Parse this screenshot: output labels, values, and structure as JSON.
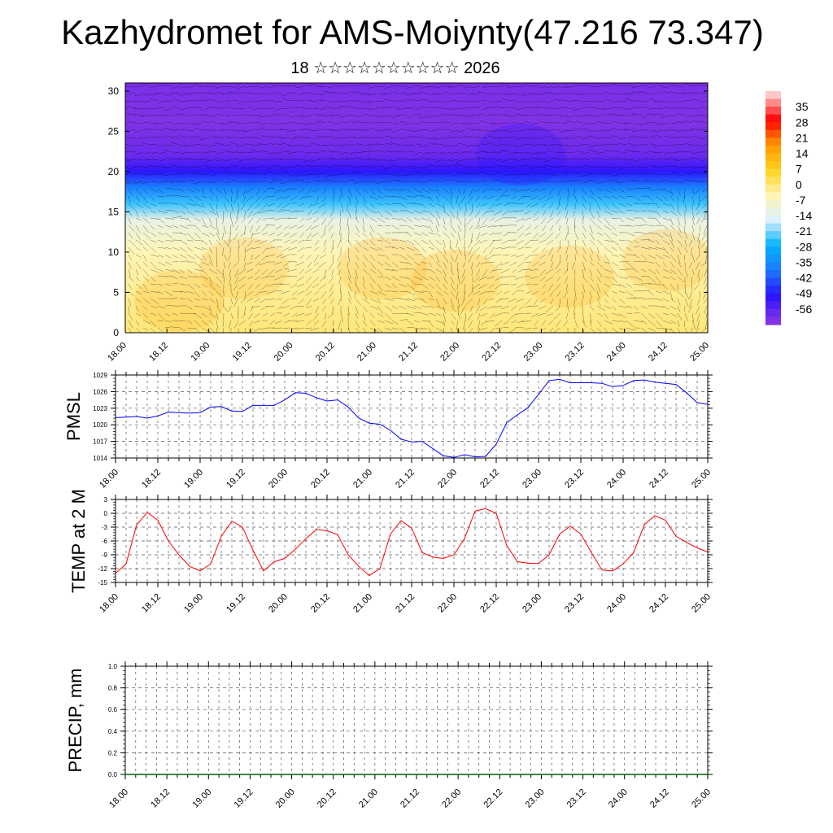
{
  "header": {
    "title": "Kazhydromet for AMS-Moiynty(47.216 73.347)",
    "subtitle": "18 ☆☆☆☆☆☆☆☆☆☆ 2026"
  },
  "colors": {
    "pmsl_line": "#0000ff",
    "temp_line": "#ff0000",
    "precip_line": "#006400",
    "colormap": [
      "#ffc8c8",
      "#ff0000",
      "#ff9900",
      "#ffd21e",
      "#fff5b4",
      "#dcf0ff",
      "#00b4ff",
      "#1e78ff",
      "#2814ff",
      "#8232e6"
    ]
  },
  "chart_data": [
    {
      "type": "heatmap",
      "name": "vertical-profile",
      "title": "",
      "xlabel": "",
      "ylabel": "",
      "x_tick_labels": [
        "18.00",
        "18.12",
        "19.00",
        "19.12",
        "20.00",
        "20.12",
        "21.00",
        "21.12",
        "22.00",
        "22.12",
        "23.00",
        "23.12",
        "24.00",
        "24.12",
        "25.00"
      ],
      "y_ticks": [
        0,
        5,
        10,
        15,
        20,
        25,
        30
      ],
      "ylim": [
        0,
        31
      ],
      "overlay": "wind vectors",
      "colorbar": {
        "labels": [
          "35",
          "28",
          "21",
          "14",
          "7",
          "0",
          "-7",
          "-14",
          "-21",
          "-28",
          "-35",
          "-42",
          "-49",
          "-56"
        ],
        "range": [
          -63,
          42
        ]
      },
      "levels": [
        0,
        5,
        10,
        14,
        16,
        18,
        20,
        22,
        26,
        31
      ],
      "values": [
        0,
        -2,
        -5,
        -12,
        -25,
        -38,
        -52,
        -60,
        -64,
        -62
      ]
    },
    {
      "type": "line",
      "name": "pmsl",
      "ylabel": "PMSL",
      "ylim": [
        1014,
        1029
      ],
      "y_ticks": [
        "1014",
        "1017",
        "1020",
        "1023",
        "1026",
        "1029"
      ],
      "x_tick_labels": [
        "18.00",
        "18.12",
        "19.00",
        "19.12",
        "20.00",
        "20.12",
        "21.00",
        "21.12",
        "22.00",
        "22.12",
        "23.00",
        "23.12",
        "24.00",
        "24.12",
        "25.00"
      ],
      "x_step_hours": 3,
      "series": [
        {
          "values": [
            1021.3,
            1021.4,
            1021.5,
            1021.2,
            1021.6,
            1022.3,
            1022.2,
            1022.1,
            1022.2,
            1023.2,
            1023.3,
            1022.5,
            1022.4,
            1023.5,
            1023.5,
            1023.5,
            1024.5,
            1025.8,
            1025.7,
            1024.9,
            1024.3,
            1024.5,
            1023.2,
            1021.2,
            1020.3,
            1020.1,
            1019.0,
            1017.4,
            1016.9,
            1017.0,
            1015.7,
            1014.4,
            1014.1,
            1014.6,
            1014.2,
            1014.3,
            1016.5,
            1020.4,
            1021.8,
            1023.1,
            1025.5,
            1028.0,
            1028.2,
            1027.6,
            1027.6,
            1027.6,
            1027.5,
            1026.9,
            1027.1,
            1028.0,
            1028.1,
            1027.7,
            1027.5,
            1027.3,
            1025.8,
            1024.0,
            1023.7
          ]
        }
      ]
    },
    {
      "type": "line",
      "name": "temp",
      "ylabel": "TEMP at 2 M",
      "ylim": [
        -15,
        3
      ],
      "y_ticks": [
        "-15",
        "-12",
        "-9",
        "-6",
        "-3",
        "0",
        "3"
      ],
      "x_tick_labels": [
        "18.00",
        "18.12",
        "19.00",
        "19.12",
        "20.00",
        "20.12",
        "21.00",
        "21.12",
        "22.00",
        "22.12",
        "23.00",
        "23.12",
        "24.00",
        "24.12",
        "25.00"
      ],
      "x_step_hours": 3,
      "series": [
        {
          "values": [
            -13.0,
            -11.0,
            -2.5,
            0.2,
            -1.5,
            -6.0,
            -9.0,
            -11.5,
            -12.5,
            -11.0,
            -5.0,
            -1.7,
            -3.0,
            -8.0,
            -12.5,
            -10.5,
            -9.8,
            -7.8,
            -5.5,
            -3.5,
            -3.8,
            -4.6,
            -9.0,
            -11.5,
            -13.5,
            -12.0,
            -4.5,
            -1.6,
            -3.2,
            -8.5,
            -9.5,
            -9.8,
            -9.0,
            -5.5,
            0.5,
            1.0,
            0.0,
            -7.0,
            -10.5,
            -10.8,
            -10.9,
            -9.0,
            -4.5,
            -2.8,
            -4.5,
            -8.5,
            -12.3,
            -12.5,
            -11.0,
            -8.5,
            -2.5,
            -0.5,
            -1.5,
            -5.0,
            -6.3,
            -7.5,
            -8.4
          ]
        }
      ]
    },
    {
      "type": "line",
      "name": "precip",
      "ylabel": "PRECIP, mm",
      "ylim": [
        0,
        1
      ],
      "y_ticks": [
        "0.0",
        "0.2",
        "0.4",
        "0.6",
        "0.8",
        "1.0"
      ],
      "x_tick_labels": [
        "18.00",
        "18.12",
        "19.00",
        "19.12",
        "20.00",
        "20.12",
        "21.00",
        "21.12",
        "22.00",
        "22.12",
        "23.00",
        "23.12",
        "24.00",
        "24.12",
        "25.00"
      ],
      "x_step_hours": 3,
      "series": [
        {
          "values": [
            0,
            0,
            0,
            0,
            0,
            0,
            0,
            0,
            0,
            0,
            0,
            0,
            0,
            0,
            0,
            0,
            0,
            0,
            0,
            0,
            0,
            0,
            0,
            0,
            0,
            0,
            0,
            0,
            0,
            0,
            0,
            0,
            0,
            0,
            0,
            0,
            0,
            0,
            0,
            0,
            0,
            0,
            0,
            0,
            0,
            0,
            0,
            0,
            0,
            0,
            0,
            0,
            0,
            0,
            0,
            0,
            0
          ]
        }
      ]
    }
  ]
}
